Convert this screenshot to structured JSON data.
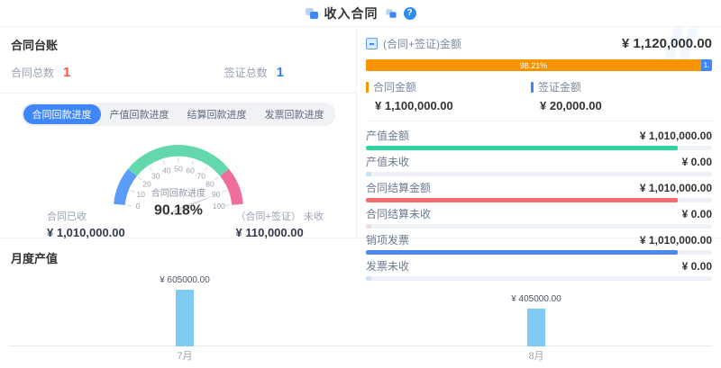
{
  "header": {
    "title": "收入合同",
    "help": "?"
  },
  "ledger": {
    "title": "合同台账",
    "stats": [
      {
        "label": "合同总数",
        "value": "1",
        "color": "#f5544a"
      },
      {
        "label": "签证总数",
        "value": "1",
        "color": "#2f7cf6"
      }
    ]
  },
  "progress_tabs": [
    {
      "label": "合同回款进度",
      "active": true
    },
    {
      "label": "产值回款进度",
      "active": false
    },
    {
      "label": "结算回款进度",
      "active": false
    },
    {
      "label": "发票回款进度",
      "active": false
    }
  ],
  "gauge": {
    "label": "合同回款进度",
    "value_pct": 90.18,
    "display": "90.18%",
    "ticks": [
      "0",
      "10",
      "20",
      "30",
      "40",
      "50",
      "60",
      "70",
      "80",
      "90",
      "100"
    ],
    "segments": [
      {
        "from": 0.0,
        "to": 0.2,
        "color": "#5b9cf8"
      },
      {
        "from": 0.2,
        "to": 0.8,
        "color": "#63d9ab"
      },
      {
        "from": 0.8,
        "to": 1.0,
        "color": "#ef6e9e"
      }
    ],
    "needle_color": "#d5d9e0"
  },
  "gauge_stats": [
    {
      "label": "合同已收",
      "value": "¥ 1,010,000.00"
    },
    {
      "label": "（合同+签证） 未收",
      "value": "¥ 110,000.00"
    }
  ],
  "summary": {
    "label": "(合同+签证)金额",
    "total": "¥ 1,120,000.00",
    "bar": {
      "contract_pct": 98.21,
      "contract_label": "98.21%",
      "visa_label": "1.",
      "contract_color": "#f79400",
      "visa_color": "#3f86f8"
    },
    "legend": [
      {
        "label": "合同金额",
        "value": "¥ 1,100,000.00",
        "color": "#f79400"
      },
      {
        "label": "签证金额",
        "value": "¥ 20,000.00",
        "color": "#3f86f8"
      }
    ]
  },
  "metrics": [
    {
      "label": "产值金额",
      "value": "¥ 1,010,000.00",
      "pct": 90,
      "color": "#2fd3a2"
    },
    {
      "label": "产值未收",
      "value": "¥ 0.00",
      "pct": 1.5,
      "color": "#bfe4f2"
    },
    {
      "label": "合同结算金额",
      "value": "¥ 1,010,000.00",
      "pct": 90,
      "color": "#f26d6d"
    },
    {
      "label": "合同结算未收",
      "value": "¥ 0.00",
      "pct": 1.5,
      "color": "#f9d7dc"
    },
    {
      "label": "销项发票",
      "value": "¥ 1,010,000.00",
      "pct": 90,
      "color": "#4e86ef"
    },
    {
      "label": "发票未收",
      "value": "¥ 0.00",
      "pct": 1.5,
      "color": "#cfe2fa"
    }
  ],
  "chart_data": {
    "type": "bar",
    "title": "月度产值",
    "categories": [
      "7月",
      "8月"
    ],
    "values": [
      605000,
      405000
    ],
    "value_labels": [
      "¥ 605000.00",
      "¥ 405000.00"
    ],
    "bar_color": "#7fcbf4",
    "ylim": [
      0,
      605000
    ],
    "xlabel": "",
    "ylabel": ""
  }
}
